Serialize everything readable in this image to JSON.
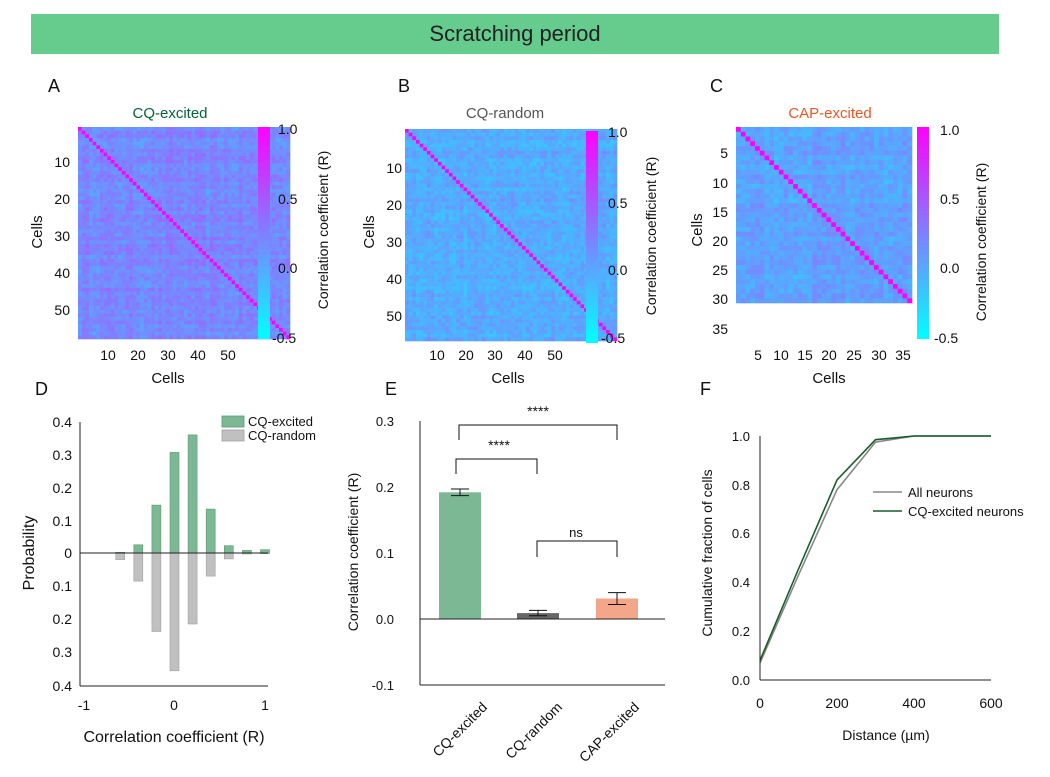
{
  "banner": {
    "title": "Scratching period"
  },
  "colors": {
    "banner": "#66cc8e",
    "cq_excited": "#006633",
    "cap_excited": "#ee5522",
    "cq_random": "#555555",
    "bar_excited": "#7db894",
    "bar_random": "#c0c0c0",
    "bar_cap": "#f4a68a"
  },
  "chart_data": [
    {
      "panel": "A",
      "type": "heatmap",
      "title": "CQ-excited",
      "xlabel": "Cells",
      "ylabel": "Cells",
      "n": 58,
      "x_ticks": [
        "10",
        "20",
        "30",
        "40",
        "50"
      ],
      "y_ticks": [
        "10",
        "20",
        "30",
        "40",
        "50"
      ],
      "colorbar": {
        "label": "Correlation coefficient (R)",
        "ticks": [
          "1.0",
          "0.5",
          "0.0",
          "-0.5"
        ],
        "range": [
          -0.5,
          1.0
        ]
      }
    },
    {
      "panel": "B",
      "type": "heatmap",
      "title": "CQ-random",
      "xlabel": "Cells",
      "ylabel": "Cells",
      "n": 58,
      "x_ticks": [
        "10",
        "20",
        "30",
        "40",
        "50"
      ],
      "y_ticks": [
        "10",
        "20",
        "30",
        "40",
        "50"
      ],
      "colorbar": {
        "label": "Correlation coefficient (R)",
        "ticks": [
          "1.0",
          "0.5",
          "0.0",
          "-0.5"
        ],
        "range": [
          -0.5,
          1.0
        ]
      }
    },
    {
      "panel": "C",
      "type": "heatmap",
      "title": "CAP-excited",
      "xlabel": "Cells",
      "ylabel": "Cells",
      "n": 37,
      "x_ticks": [
        "5",
        "10",
        "15",
        "20",
        "25",
        "30",
        "35"
      ],
      "y_ticks": [
        "5",
        "10",
        "15",
        "20",
        "25",
        "30",
        "35"
      ],
      "colorbar": {
        "label": "Correlation coefficient (R)",
        "ticks": [
          "1.0",
          "0.5",
          "0.0",
          "-0.5"
        ],
        "range": [
          -0.5,
          1.0
        ]
      }
    },
    {
      "panel": "D",
      "type": "bar",
      "xlabel": "Correlation coefficient (R)",
      "ylabel": "Probability",
      "x_ticks": [
        "-1",
        "0",
        "1"
      ],
      "y_ticks": [
        "0.4",
        "0.3",
        "0.2",
        "0.1",
        "0",
        "0.1",
        "0.2",
        "0.3",
        "0.4"
      ],
      "x": [
        -0.6,
        -0.4,
        -0.2,
        0.0,
        0.2,
        0.4,
        0.6,
        0.8,
        1.0
      ],
      "series": [
        {
          "name": "CQ-excited",
          "values": [
            0.002,
            0.025,
            0.145,
            0.305,
            0.358,
            0.133,
            0.022,
            0.008,
            0.01
          ]
        },
        {
          "name": "CQ-random",
          "values": [
            0.02,
            0.085,
            0.238,
            0.357,
            0.215,
            0.07,
            0.018,
            0.003,
            0.002
          ]
        }
      ],
      "legend": "top-right"
    },
    {
      "panel": "E",
      "type": "bar",
      "ylabel": "Correlation coefficient (R)",
      "categories": [
        "CQ-excited",
        "CQ-random",
        "CAP-excited"
      ],
      "values": [
        0.192,
        0.009,
        0.031
      ],
      "errors": [
        0.005,
        0.004,
        0.009
      ],
      "y_ticks": [
        "0.3",
        "0.2",
        "0.1",
        "0.0",
        "-0.1"
      ],
      "ylim": [
        -0.1,
        0.3
      ],
      "significance": [
        {
          "from": 0,
          "to": 1,
          "label": "****"
        },
        {
          "from": 0,
          "to": 2,
          "label": "****"
        },
        {
          "from": 1,
          "to": 2,
          "label": "ns"
        }
      ]
    },
    {
      "panel": "F",
      "type": "line",
      "xlabel": "Distance (µm)",
      "ylabel": "Cumulative fraction of cells",
      "x": [
        0,
        100,
        200,
        300,
        400,
        500,
        600
      ],
      "x_ticks": [
        "0",
        "200",
        "400",
        "600"
      ],
      "y_ticks": [
        "1.0",
        "0.8",
        "0.6",
        "0.4",
        "0.2",
        "0.0"
      ],
      "xlim": [
        0,
        600
      ],
      "ylim": [
        0,
        1
      ],
      "series": [
        {
          "name": "All neurons",
          "values": [
            0.07,
            0.43,
            0.78,
            0.975,
            1.0,
            1.0,
            1.0
          ]
        },
        {
          "name": "CQ-excited neurons",
          "values": [
            0.08,
            0.455,
            0.82,
            0.985,
            1.0,
            1.0,
            1.0
          ]
        }
      ],
      "legend": "center-right"
    }
  ]
}
